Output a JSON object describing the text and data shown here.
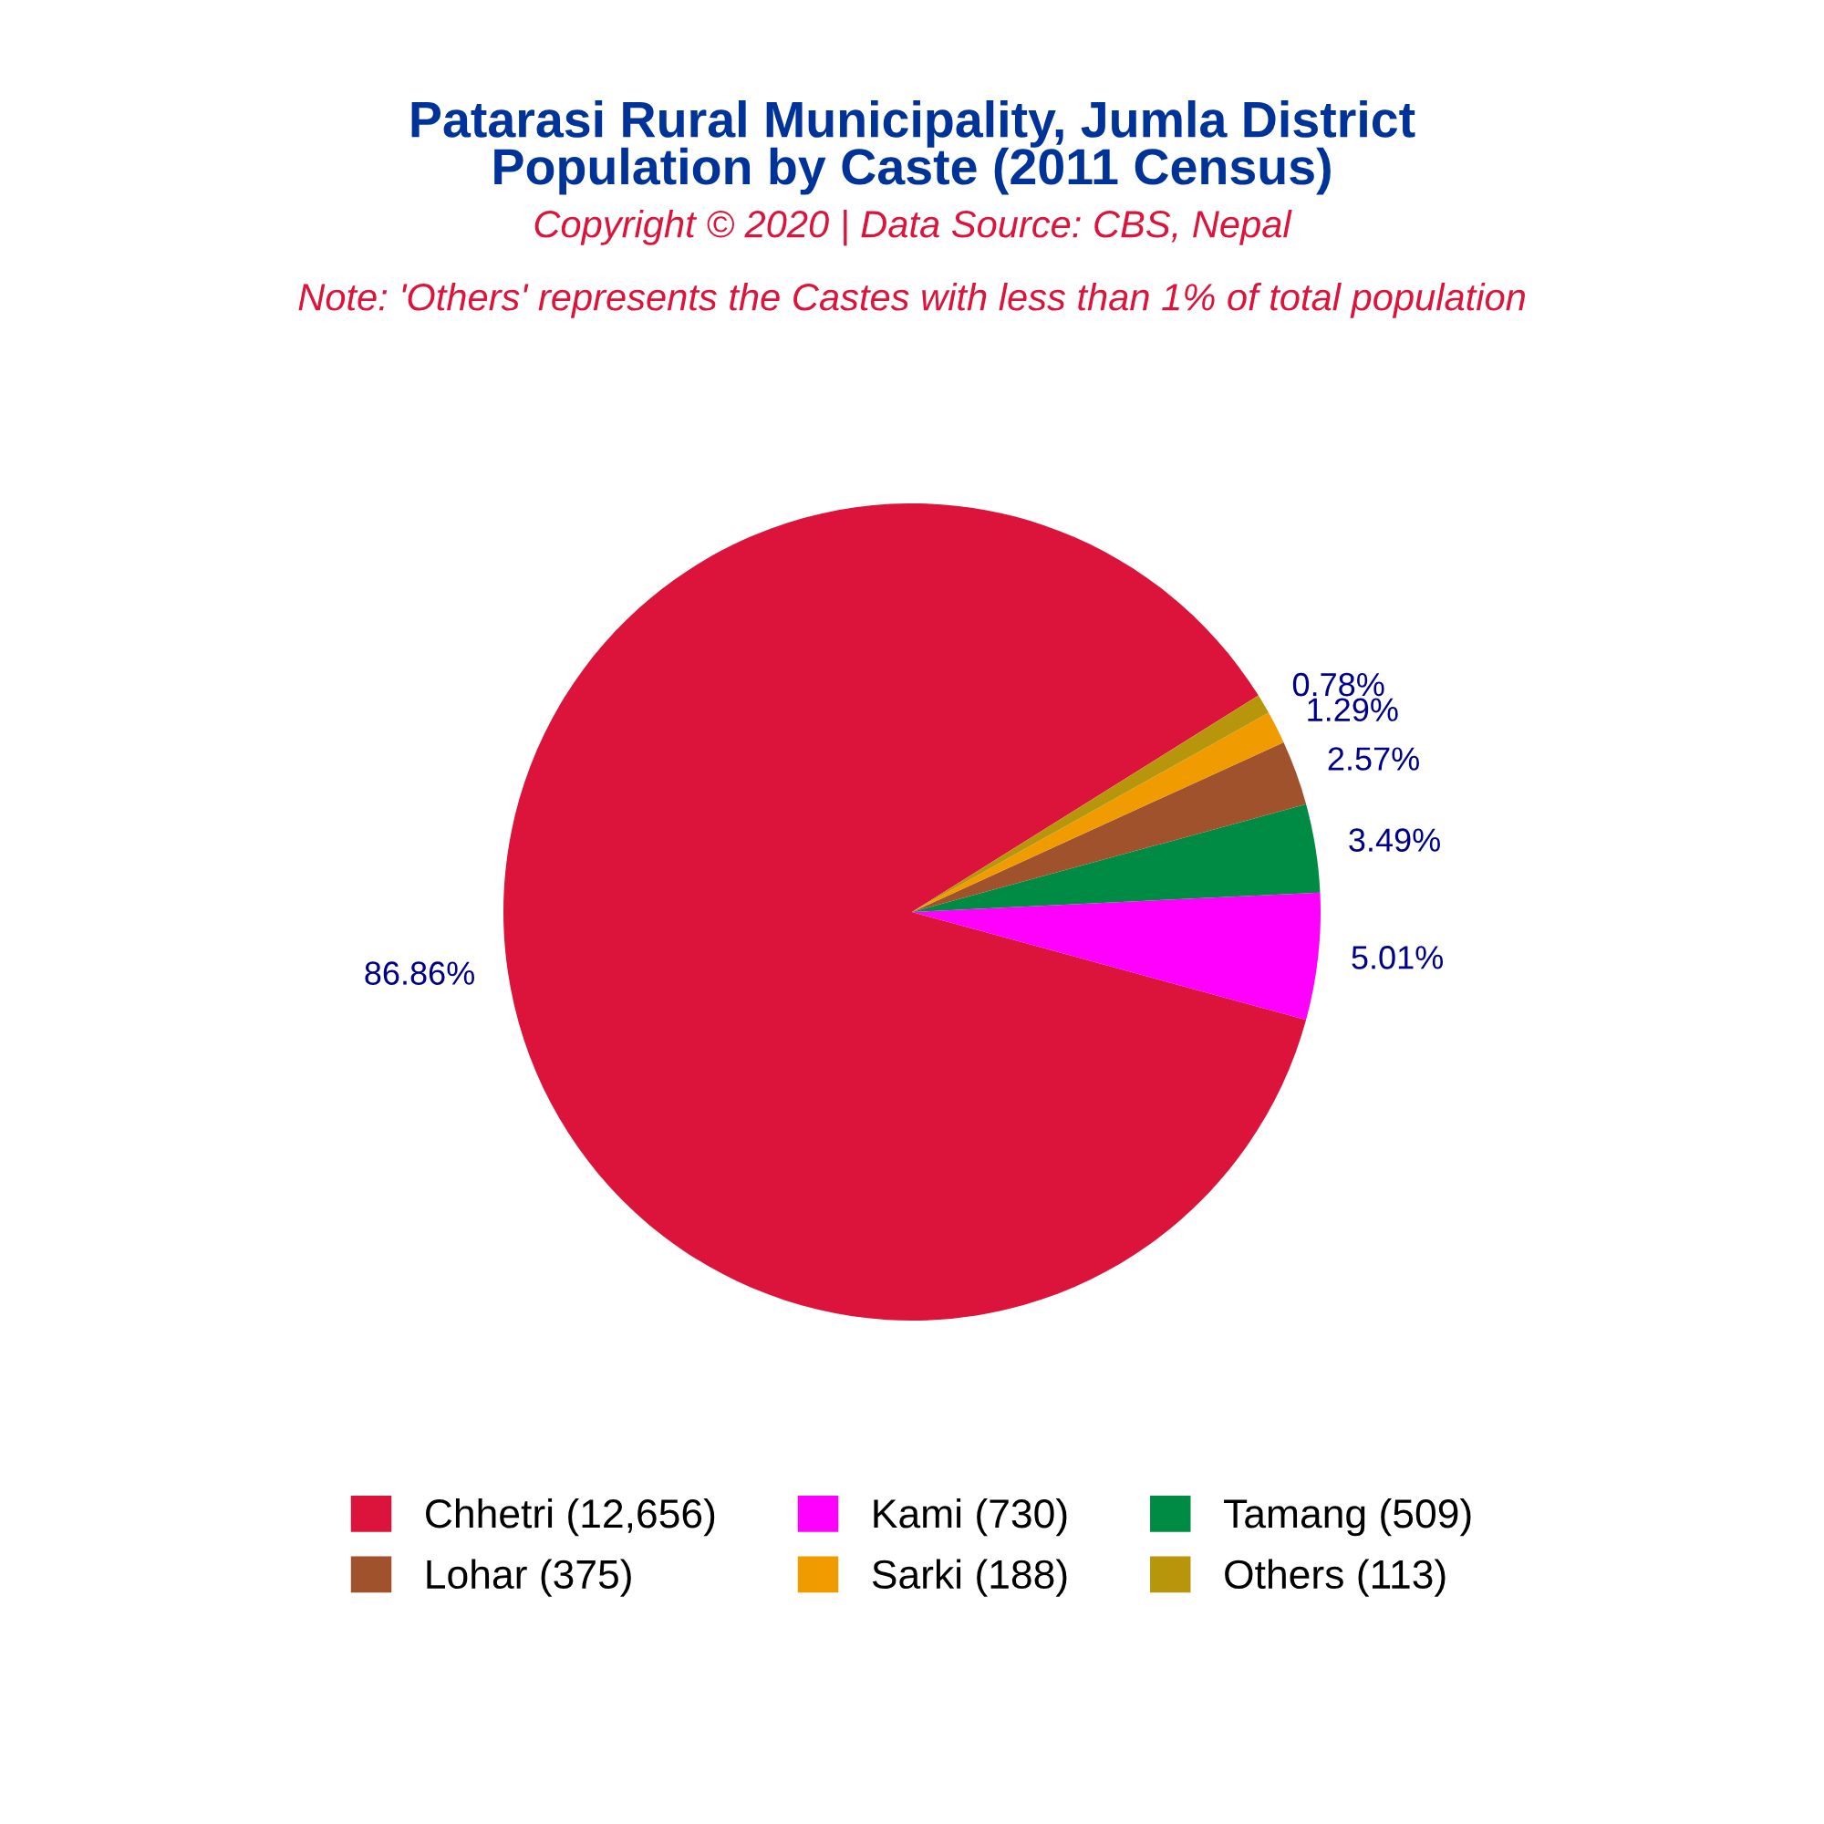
{
  "chart_data": {
    "type": "pie",
    "title": "Patarasi Rural Municipality, Jumla District\nPopulation by Caste (2011 Census)",
    "subtitle": "Copyright © 2020 | Data Source: CBS, Nepal",
    "annotations": [
      "Note: 'Others' represents the Castes with less than 1% of total population"
    ],
    "categories": [
      "Chhetri (12,656)",
      "Kami (730)",
      "Tamang (509)",
      "Lohar (375)",
      "Sarki (188)",
      "Others (113)"
    ],
    "values": [
      86.86,
      5.01,
      3.49,
      2.57,
      1.29,
      0.78
    ],
    "value_labels": [
      "86.86%",
      "5.01%",
      "3.49%",
      "2.57%",
      "1.29%",
      "0.78%"
    ],
    "colors": [
      "#dc143c",
      "#ff00ff",
      "#008b45",
      "#a0522d",
      "#f09c00",
      "#b8960c"
    ],
    "legend": "bottom"
  }
}
